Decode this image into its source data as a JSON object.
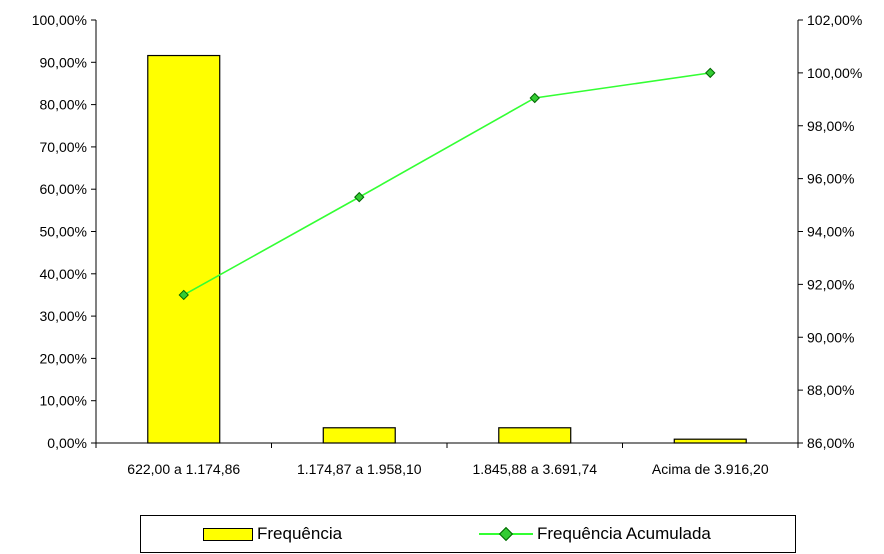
{
  "colors": {
    "bar_fill": "#ffff00",
    "bar_stroke": "#000000",
    "line_color": "#33ff33",
    "marker_fill": "#33cc33",
    "marker_stroke": "#006600"
  },
  "chart_data": {
    "type": "bar",
    "categories": [
      "622,00 a 1.174,86",
      "1.174,87 a 1.958,10",
      "1.845,88 a 3.691,74",
      "Acima de 3.916,20"
    ],
    "series": [
      {
        "name": "Frequência",
        "type": "bar",
        "axis": "left",
        "values": [
          91.6,
          3.6,
          3.6,
          0.9
        ]
      },
      {
        "name": "Frequência Acumulada",
        "type": "line",
        "axis": "right",
        "values": [
          91.6,
          95.3,
          99.05,
          100.0
        ]
      }
    ],
    "y_left": {
      "ylim": [
        0,
        100
      ],
      "ticks": [
        0,
        10,
        20,
        30,
        40,
        50,
        60,
        70,
        80,
        90,
        100
      ],
      "tick_labels": [
        "0,00%",
        "10,00%",
        "20,00%",
        "30,00%",
        "40,00%",
        "50,00%",
        "60,00%",
        "70,00%",
        "80,00%",
        "90,00%",
        "100,00%"
      ]
    },
    "y_right": {
      "ylim": [
        86,
        102
      ],
      "ticks": [
        86,
        88,
        90,
        92,
        94,
        96,
        98,
        100,
        102
      ],
      "tick_labels": [
        "86,00%",
        "88,00%",
        "90,00%",
        "92,00%",
        "94,00%",
        "96,00%",
        "98,00%",
        "100,00%",
        "102,00%"
      ]
    },
    "grid": false,
    "legend_position": "bottom"
  },
  "legend": {
    "items": [
      {
        "label": "Frequência"
      },
      {
        "label": "Frequência Acumulada"
      }
    ]
  }
}
